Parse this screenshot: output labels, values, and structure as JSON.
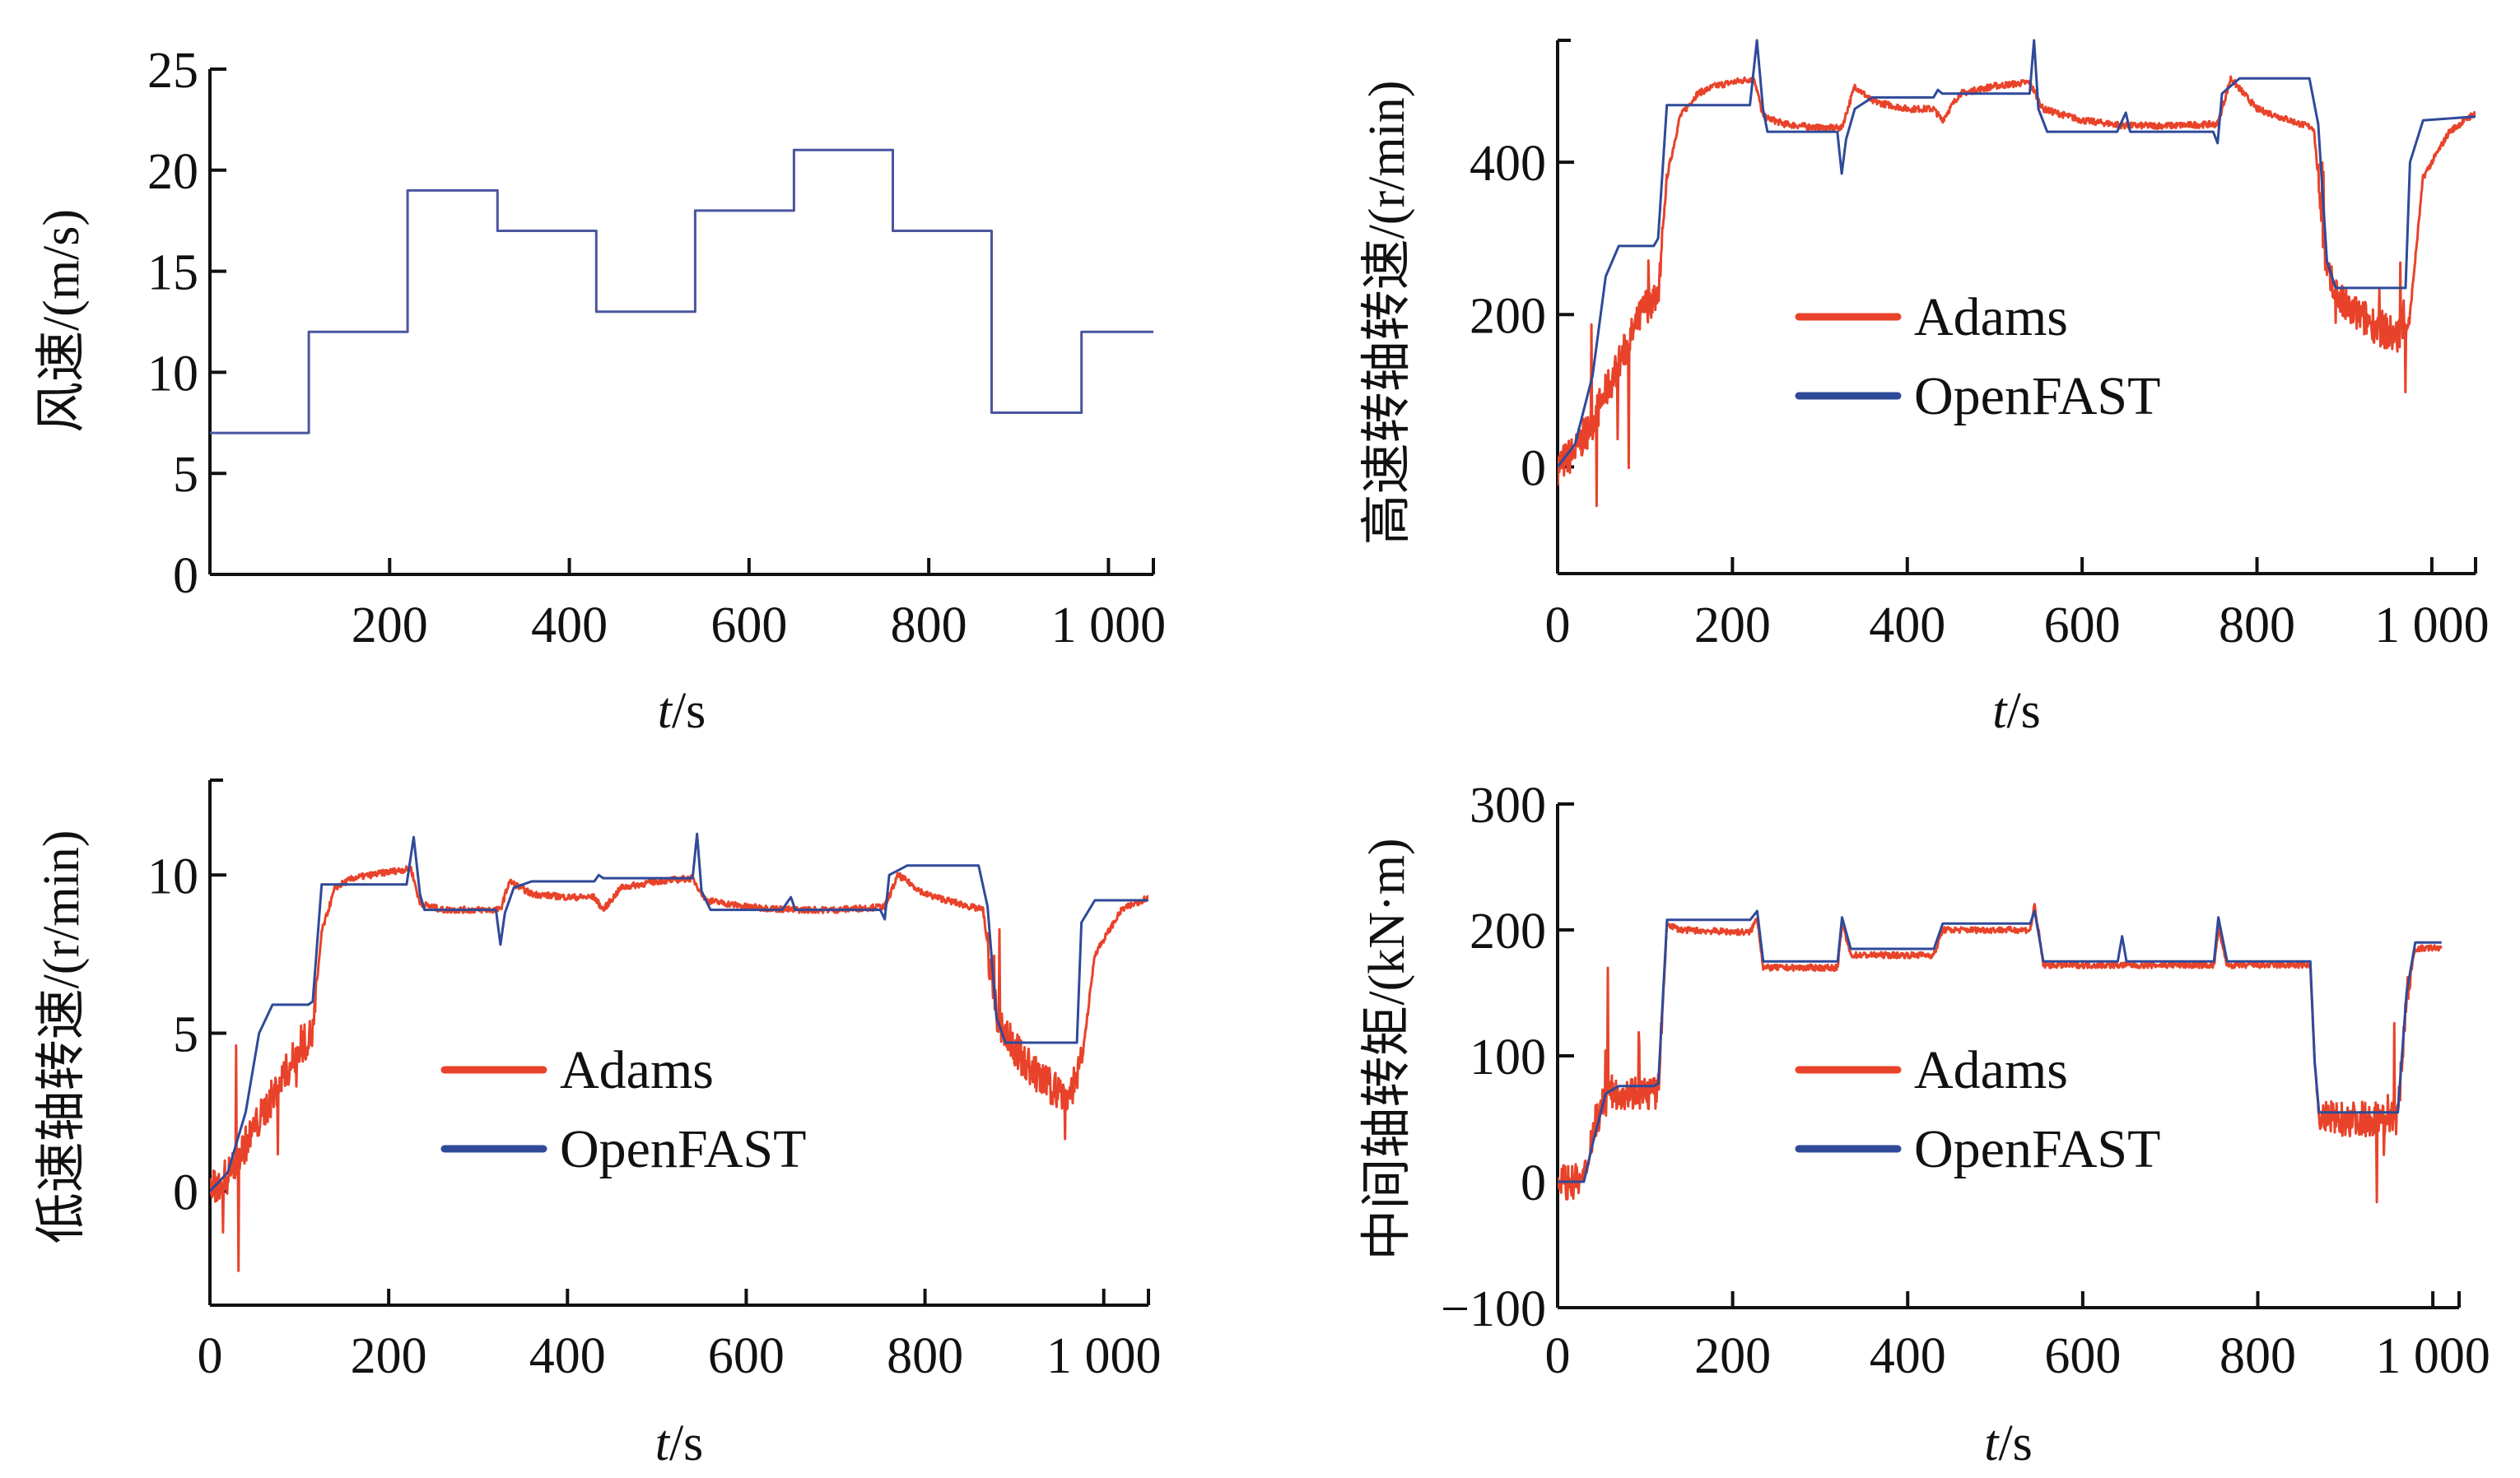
{
  "figure": {
    "colors": {
      "adams": "#e8432a",
      "openfast": "#2f4a99",
      "wind": "#4a55a0",
      "axis": "#111111"
    }
  },
  "chart_data": [
    {
      "id": "wind",
      "type": "line",
      "title": "",
      "xlabel_italic": "t",
      "xlabel_rest": "/s",
      "ylabel": "风速/(m/s)",
      "xlim": [
        0,
        1050
      ],
      "ylim": [
        0,
        25
      ],
      "xticks": [
        200,
        400,
        600,
        800,
        1000
      ],
      "xtick_labels": [
        "200",
        "400",
        "600",
        "800",
        "1 000"
      ],
      "yticks": [
        0,
        5,
        10,
        15,
        20,
        25
      ],
      "ytick_labels": [
        "0",
        "5",
        "10",
        "15",
        "20",
        "25"
      ],
      "legend": null,
      "series": [
        {
          "name": "风速",
          "color_key": "wind",
          "step": true,
          "x": [
            0,
            110,
            110,
            220,
            220,
            320,
            320,
            430,
            430,
            540,
            540,
            650,
            650,
            760,
            760,
            870,
            870,
            970,
            970,
            1050
          ],
          "y": [
            7,
            7,
            12,
            12,
            19,
            19,
            17,
            17,
            13,
            13,
            18,
            18,
            21,
            21,
            17,
            17,
            8,
            8,
            12,
            12
          ]
        }
      ]
    },
    {
      "id": "hss",
      "type": "line",
      "xlabel_italic": "t",
      "xlabel_rest": "/s",
      "ylabel": "高速转轴转速/(r/min)",
      "xlim": [
        0,
        1050
      ],
      "ylim": [
        -140,
        560
      ],
      "xticks": [
        0,
        200,
        400,
        600,
        800,
        1000
      ],
      "xtick_labels": [
        "0",
        "200",
        "400",
        "600",
        "800",
        "1 000"
      ],
      "yticks": [
        0,
        200,
        400
      ],
      "ytick_labels": [
        "0",
        "200",
        "400"
      ],
      "legend": {
        "position": "center",
        "entries": [
          "Adams",
          "OpenFAST"
        ]
      },
      "series": [
        {
          "name": "Adams",
          "color_key": "adams",
          "x": [
            0,
            20,
            40,
            60,
            80,
            100,
            115,
            125,
            140,
            160,
            180,
            200,
            225,
            235,
            260,
            300,
            325,
            340,
            360,
            400,
            430,
            440,
            460,
            500,
            540,
            555,
            600,
            650,
            700,
            755,
            770,
            800,
            850,
            865,
            880,
            900,
            930,
            960,
            975,
            990,
            1020,
            1050
          ],
          "y": [
            0,
            20,
            60,
            110,
            160,
            210,
            230,
            380,
            460,
            490,
            500,
            505,
            510,
            460,
            450,
            445,
            445,
            500,
            480,
            470,
            470,
            455,
            490,
            500,
            505,
            470,
            455,
            448,
            448,
            450,
            510,
            470,
            450,
            445,
            250,
            210,
            190,
            170,
            200,
            380,
            440,
            465
          ]
        },
        {
          "name": "OpenFAST",
          "color_key": "openfast",
          "x": [
            0,
            20,
            40,
            55,
            70,
            110,
            115,
            125,
            220,
            228,
            235,
            240,
            320,
            325,
            330,
            340,
            360,
            430,
            435,
            440,
            540,
            545,
            550,
            560,
            640,
            650,
            655,
            750,
            755,
            760,
            780,
            860,
            870,
            880,
            890,
            970,
            975,
            990,
            1050
          ],
          "y": [
            0,
            30,
            120,
            250,
            290,
            290,
            300,
            475,
            475,
            560,
            470,
            440,
            440,
            385,
            430,
            470,
            485,
            485,
            495,
            490,
            490,
            560,
            470,
            440,
            440,
            465,
            440,
            440,
            425,
            490,
            510,
            510,
            450,
            270,
            235,
            235,
            400,
            455,
            460
          ]
        }
      ]
    },
    {
      "id": "lss",
      "type": "line",
      "xlabel_italic": "t",
      "xlabel_rest": "/s",
      "ylabel": "低速轴转速/(r/min)",
      "xlim": [
        0,
        1050
      ],
      "ylim": [
        -3.6,
        13
      ],
      "xticks": [
        0,
        200,
        400,
        600,
        800,
        1000
      ],
      "xtick_labels": [
        "0",
        "200",
        "400",
        "600",
        "800",
        "1 000"
      ],
      "yticks": [
        0,
        5,
        10
      ],
      "ytick_labels": [
        "0",
        "5",
        "10"
      ],
      "legend": {
        "position": "center",
        "entries": [
          "Adams",
          "OpenFAST"
        ]
      },
      "series": [
        {
          "name": "Adams",
          "color_key": "adams",
          "x": [
            0,
            20,
            40,
            60,
            80,
            100,
            115,
            125,
            140,
            160,
            180,
            200,
            225,
            235,
            260,
            300,
            325,
            335,
            360,
            400,
            430,
            440,
            460,
            500,
            540,
            555,
            600,
            650,
            700,
            755,
            770,
            800,
            850,
            865,
            880,
            900,
            930,
            960,
            975,
            990,
            1020,
            1050
          ],
          "y": [
            0,
            0.5,
            1.5,
            2.5,
            3.5,
            4.5,
            5.0,
            8.2,
            9.6,
            9.9,
            10.0,
            10.1,
            10.2,
            9.1,
            8.9,
            8.9,
            8.9,
            9.8,
            9.4,
            9.3,
            9.3,
            8.9,
            9.6,
            9.8,
            9.9,
            9.2,
            9.0,
            8.9,
            8.9,
            9.0,
            10.0,
            9.4,
            9.0,
            8.9,
            5.5,
            4.5,
            3.5,
            3.0,
            4.0,
            7.5,
            8.9,
            9.3
          ]
        },
        {
          "name": "OpenFAST",
          "color_key": "openfast",
          "x": [
            0,
            20,
            40,
            55,
            70,
            110,
            115,
            125,
            220,
            228,
            235,
            240,
            320,
            325,
            330,
            340,
            360,
            430,
            435,
            440,
            540,
            545,
            550,
            560,
            640,
            650,
            655,
            750,
            755,
            760,
            780,
            860,
            870,
            880,
            890,
            970,
            975,
            990,
            1050
          ],
          "y": [
            0,
            0.6,
            2.5,
            5.0,
            5.9,
            5.9,
            6.0,
            9.7,
            9.7,
            11.2,
            9.4,
            8.9,
            8.9,
            7.8,
            8.8,
            9.6,
            9.8,
            9.8,
            10.0,
            9.9,
            9.9,
            11.3,
            9.5,
            8.9,
            8.9,
            9.3,
            8.9,
            8.9,
            8.6,
            10.0,
            10.3,
            10.3,
            9.0,
            5.5,
            4.7,
            4.7,
            8.5,
            9.2,
            9.2
          ]
        }
      ]
    },
    {
      "id": "torque",
      "type": "line",
      "xlabel_italic": "t",
      "xlabel_rest": "/s",
      "ylabel": "中间轴转矩/(kN·m)",
      "xlim": [
        0,
        1030
      ],
      "ylim": [
        -100,
        300
      ],
      "xticks": [
        0,
        200,
        400,
        600,
        800,
        1000
      ],
      "xtick_labels": [
        "0",
        "200",
        "400",
        "600",
        "800",
        "1 000"
      ],
      "yticks": [
        -100,
        0,
        100,
        200,
        300
      ],
      "ytick_labels": [
        "−100",
        "0",
        "100",
        "200",
        "300"
      ],
      "legend": {
        "position": "center",
        "entries": [
          "Adams",
          "OpenFAST"
        ]
      },
      "series": [
        {
          "name": "Adams",
          "color_key": "adams",
          "x": [
            0,
            30,
            40,
            50,
            60,
            70,
            110,
            115,
            125,
            140,
            220,
            228,
            235,
            320,
            325,
            335,
            430,
            440,
            540,
            545,
            555,
            750,
            755,
            765,
            860,
            865,
            870,
            960,
            970,
            980,
            1010
          ],
          "y": [
            0,
            0,
            40,
            60,
            70,
            72,
            70,
            72,
            205,
            200,
            198,
            210,
            170,
            170,
            205,
            180,
            180,
            200,
            200,
            220,
            172,
            172,
            200,
            172,
            172,
            95,
            50,
            50,
            150,
            185,
            186
          ]
        },
        {
          "name": "OpenFAST",
          "color_key": "openfast",
          "x": [
            0,
            30,
            40,
            55,
            70,
            110,
            115,
            125,
            220,
            228,
            235,
            320,
            325,
            335,
            430,
            440,
            540,
            545,
            555,
            640,
            645,
            650,
            750,
            755,
            765,
            860,
            865,
            870,
            960,
            970,
            980,
            1010
          ],
          "y": [
            0,
            0,
            30,
            70,
            76,
            76,
            78,
            208,
            208,
            215,
            175,
            175,
            210,
            185,
            185,
            205,
            205,
            215,
            175,
            175,
            195,
            175,
            175,
            210,
            175,
            175,
            95,
            55,
            55,
            150,
            190,
            190
          ]
        }
      ]
    }
  ]
}
